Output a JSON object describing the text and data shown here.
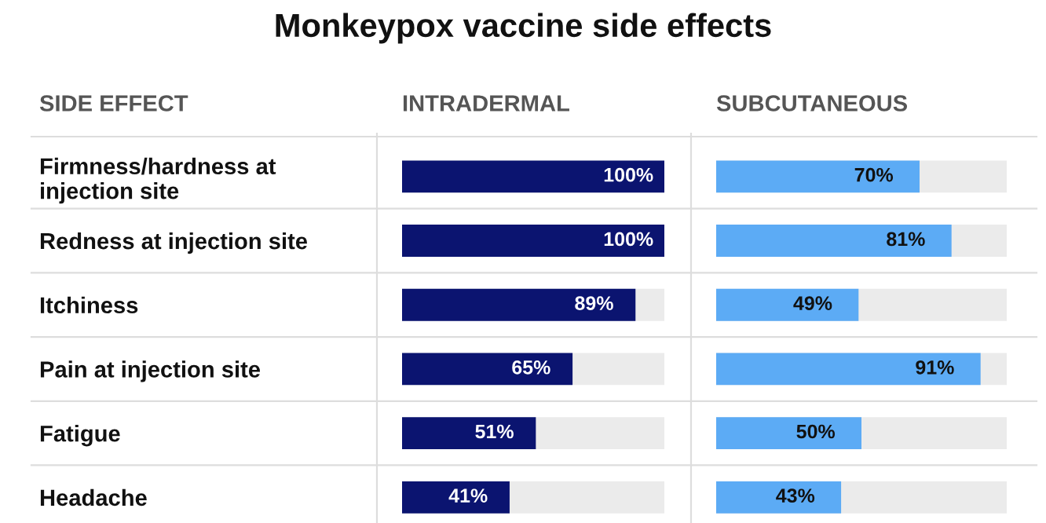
{
  "chart_data": [
    {
      "type": "bar",
      "orientation": "horizontal",
      "title": "Monkeypox vaccine side effects",
      "ylabel": "SIDE EFFECT",
      "subtitle": "INTRADERMAL",
      "xlim": [
        0,
        100
      ],
      "tick_labels": "y",
      "categories": [
        "Firmness/hardness at\ninjection site",
        "Redness at injection site",
        "Itchiness",
        "Pain at injection site",
        "Fatigue",
        "Headache"
      ],
      "color": "#0b1470",
      "values": [
        100,
        100,
        89,
        65,
        51,
        41
      ],
      "value_labels": [
        "100%",
        "100%",
        "89%",
        "65%",
        "51%",
        "41%"
      ]
    },
    {
      "type": "bar",
      "orientation": "horizontal",
      "subtitle": "SUBCUTANEOUS",
      "xlim": [
        0,
        100
      ],
      "tick_labels": false,
      "color": "#5cabf5",
      "values": [
        70,
        81,
        49,
        91,
        50,
        43
      ],
      "value_labels": [
        "70%",
        "81%",
        "49%",
        "91%",
        "50%",
        "43%"
      ]
    }
  ]
}
